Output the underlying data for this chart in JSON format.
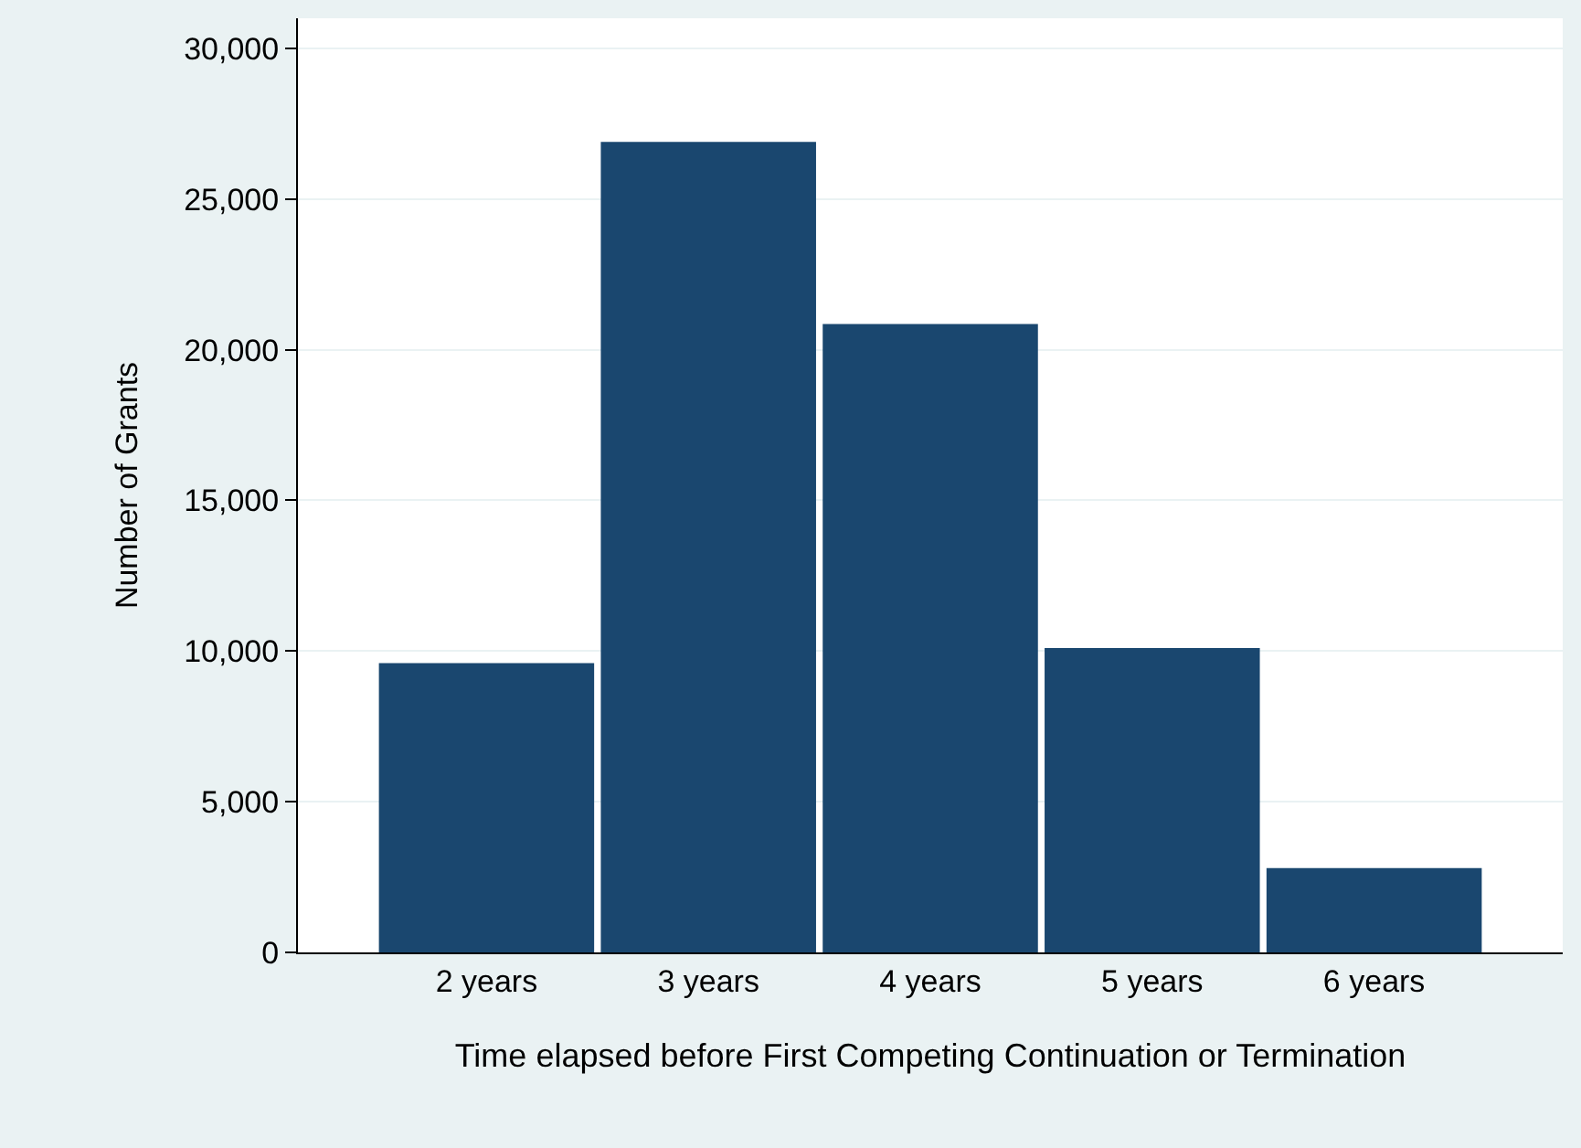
{
  "chart_data": {
    "type": "bar",
    "xlabel": "Time elapsed before First Competing Continuation or Termination",
    "ylabel": "Number of Grants",
    "categories": [
      "2 years",
      "3 years",
      "4 years",
      "5 years",
      "6 years"
    ],
    "values": [
      9600,
      26900,
      20850,
      10100,
      2800
    ],
    "color": "#1a476f",
    "ylim": [
      0,
      31000
    ],
    "yticks": [
      {
        "value": 0,
        "label": "0"
      },
      {
        "value": 5000,
        "label": "5,000"
      },
      {
        "value": 10000,
        "label": "10,000"
      },
      {
        "value": 15000,
        "label": "15,000"
      },
      {
        "value": 20000,
        "label": "20,000"
      },
      {
        "value": 25000,
        "label": "25,000"
      },
      {
        "value": 30000,
        "label": "30,000"
      }
    ],
    "grid": "y"
  }
}
